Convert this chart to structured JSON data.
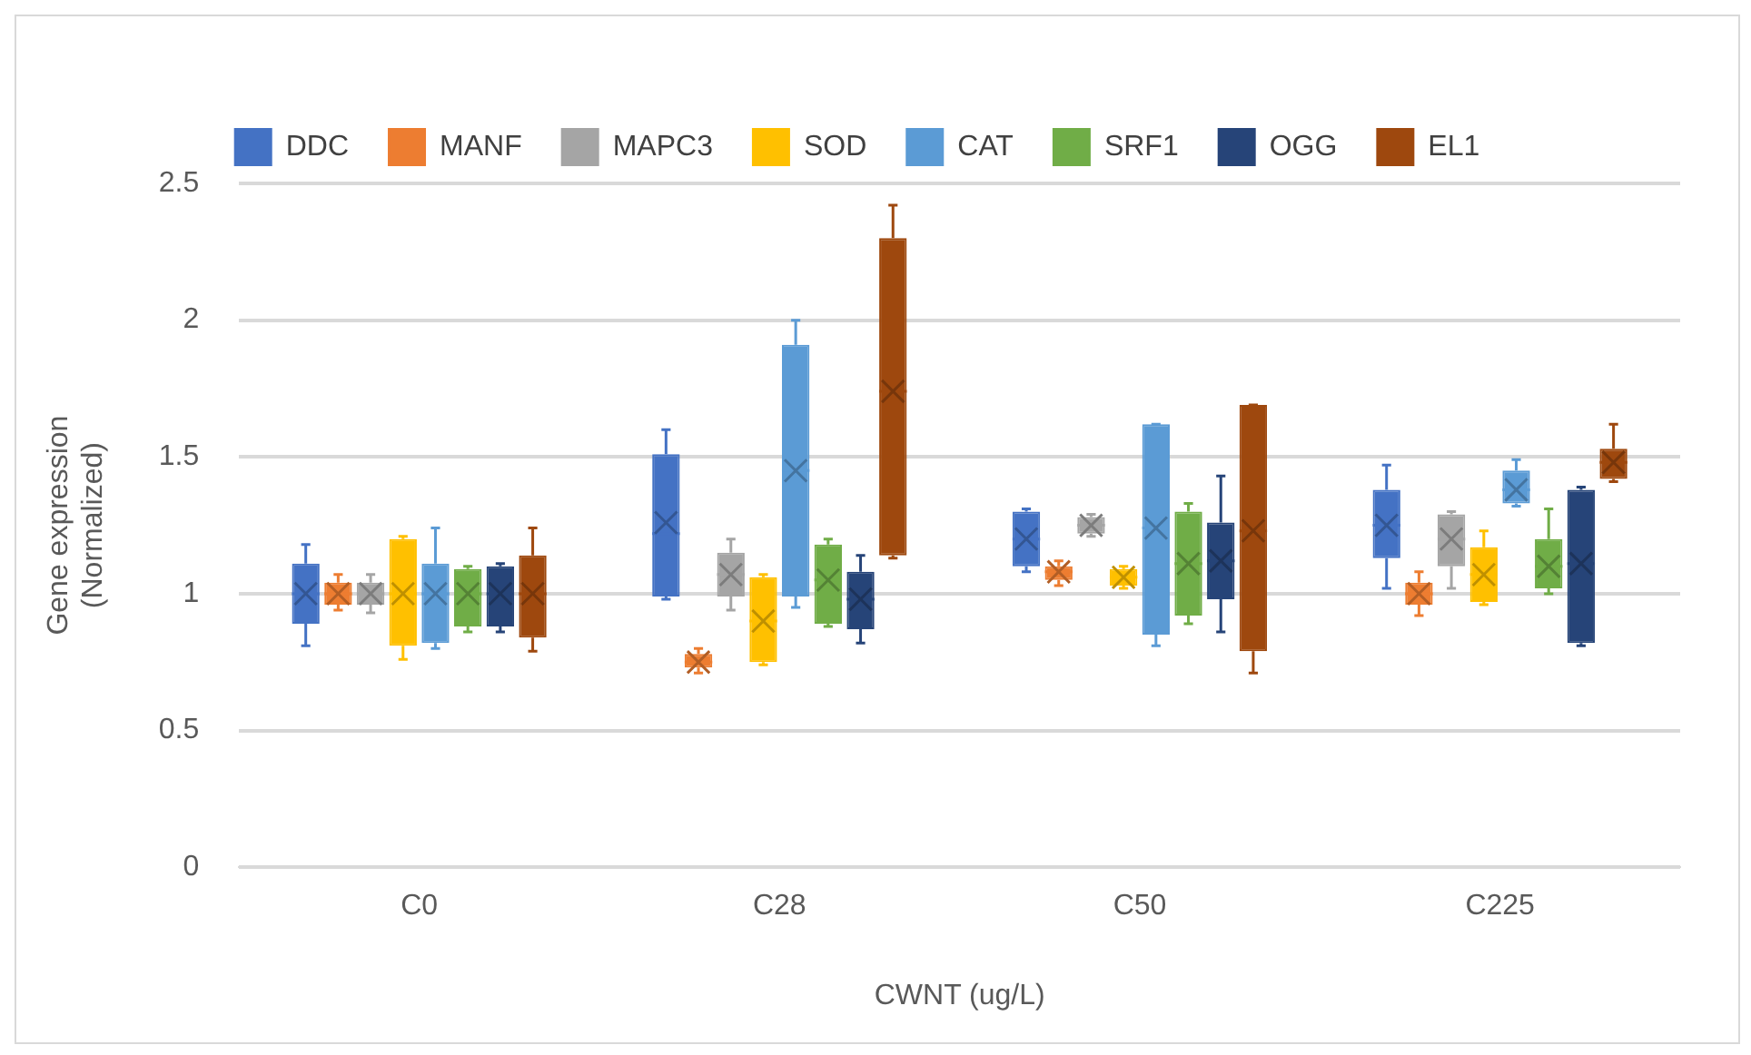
{
  "chart_data": {
    "type": "box",
    "xlabel": "CWNT (ug/L)",
    "ylabel": "Gene expression\n(Normalized)",
    "categories": [
      "C0",
      "C28",
      "C50",
      "C225"
    ],
    "ylim": [
      0,
      2.5
    ],
    "yticks": [
      0,
      0.5,
      1,
      1.5,
      2,
      2.5
    ],
    "grid": "y",
    "legend": "top",
    "marker": "cross",
    "series": [
      {
        "name": "DDC",
        "color": "#4472c4",
        "boxes": [
          {
            "low": 0.81,
            "q1": 0.89,
            "median": 1.0,
            "q3": 1.11,
            "high": 1.18,
            "mean": 1.0
          },
          {
            "low": 0.98,
            "q1": 0.99,
            "median": 1.22,
            "q3": 1.51,
            "high": 1.6,
            "mean": 1.26
          },
          {
            "low": 1.08,
            "q1": 1.1,
            "median": 1.2,
            "q3": 1.3,
            "high": 1.31,
            "mean": 1.2
          },
          {
            "low": 1.02,
            "q1": 1.13,
            "median": 1.25,
            "q3": 1.38,
            "high": 1.47,
            "mean": 1.25
          }
        ]
      },
      {
        "name": "MANF",
        "color": "#ed7d31",
        "boxes": [
          {
            "low": 0.94,
            "q1": 0.96,
            "median": 1.0,
            "q3": 1.04,
            "high": 1.07,
            "mean": 1.0
          },
          {
            "low": 0.71,
            "q1": 0.73,
            "median": 0.75,
            "q3": 0.78,
            "high": 0.8,
            "mean": 0.75
          },
          {
            "low": 1.03,
            "q1": 1.05,
            "median": 1.08,
            "q3": 1.1,
            "high": 1.12,
            "mean": 1.08
          },
          {
            "low": 0.92,
            "q1": 0.96,
            "median": 1.0,
            "q3": 1.04,
            "high": 1.08,
            "mean": 1.0
          }
        ]
      },
      {
        "name": "MAPC3",
        "color": "#a5a5a5",
        "boxes": [
          {
            "low": 0.93,
            "q1": 0.96,
            "median": 1.0,
            "q3": 1.04,
            "high": 1.07,
            "mean": 1.0
          },
          {
            "low": 0.94,
            "q1": 0.99,
            "median": 1.07,
            "q3": 1.15,
            "high": 1.2,
            "mean": 1.07
          },
          {
            "low": 1.21,
            "q1": 1.22,
            "median": 1.25,
            "q3": 1.28,
            "high": 1.29,
            "mean": 1.25
          },
          {
            "low": 1.02,
            "q1": 1.1,
            "median": 1.2,
            "q3": 1.29,
            "high": 1.3,
            "mean": 1.2
          }
        ]
      },
      {
        "name": "SOD",
        "color": "#ffc000",
        "boxes": [
          {
            "low": 0.76,
            "q1": 0.81,
            "median": 1.0,
            "q3": 1.2,
            "high": 1.21,
            "mean": 1.0
          },
          {
            "low": 0.74,
            "q1": 0.75,
            "median": 0.9,
            "q3": 1.06,
            "high": 1.07,
            "mean": 0.9
          },
          {
            "low": 1.02,
            "q1": 1.03,
            "median": 1.06,
            "q3": 1.09,
            "high": 1.1,
            "mean": 1.06
          },
          {
            "low": 0.96,
            "q1": 0.97,
            "median": 1.07,
            "q3": 1.17,
            "high": 1.23,
            "mean": 1.07
          }
        ]
      },
      {
        "name": "CAT",
        "color": "#5b9bd5",
        "boxes": [
          {
            "low": 0.8,
            "q1": 0.82,
            "median": 1.0,
            "q3": 1.11,
            "high": 1.24,
            "mean": 1.0
          },
          {
            "low": 0.95,
            "q1": 0.99,
            "median": 1.45,
            "q3": 1.91,
            "high": 2.0,
            "mean": 1.45
          },
          {
            "low": 0.81,
            "q1": 0.85,
            "median": 1.24,
            "q3": 1.62,
            "high": 1.62,
            "mean": 1.24
          },
          {
            "low": 1.32,
            "q1": 1.33,
            "median": 1.38,
            "q3": 1.45,
            "high": 1.49,
            "mean": 1.38
          }
        ]
      },
      {
        "name": "SRF1",
        "color": "#70ad47",
        "boxes": [
          {
            "low": 0.86,
            "q1": 0.88,
            "median": 1.0,
            "q3": 1.09,
            "high": 1.1,
            "mean": 1.0
          },
          {
            "low": 0.88,
            "q1": 0.89,
            "median": 1.05,
            "q3": 1.18,
            "high": 1.2,
            "mean": 1.05
          },
          {
            "low": 0.89,
            "q1": 0.92,
            "median": 1.11,
            "q3": 1.3,
            "high": 1.33,
            "mean": 1.11
          },
          {
            "low": 1.0,
            "q1": 1.02,
            "median": 1.1,
            "q3": 1.2,
            "high": 1.31,
            "mean": 1.1
          }
        ]
      },
      {
        "name": "OGG",
        "color": "#264478",
        "boxes": [
          {
            "low": 0.86,
            "q1": 0.88,
            "median": 1.0,
            "q3": 1.1,
            "high": 1.11,
            "mean": 1.0
          },
          {
            "low": 0.82,
            "q1": 0.87,
            "median": 0.98,
            "q3": 1.08,
            "high": 1.14,
            "mean": 0.98
          },
          {
            "low": 0.86,
            "q1": 0.98,
            "median": 1.12,
            "q3": 1.26,
            "high": 1.43,
            "mean": 1.12
          },
          {
            "low": 0.81,
            "q1": 0.82,
            "median": 1.11,
            "q3": 1.38,
            "high": 1.39,
            "mean": 1.11
          }
        ]
      },
      {
        "name": "EL1",
        "color": "#9e480e",
        "boxes": [
          {
            "low": 0.79,
            "q1": 0.84,
            "median": 1.0,
            "q3": 1.14,
            "high": 1.24,
            "mean": 1.0
          },
          {
            "low": 1.13,
            "q1": 1.14,
            "median": 1.74,
            "q3": 2.3,
            "high": 2.42,
            "mean": 1.74
          },
          {
            "low": 0.71,
            "q1": 0.79,
            "median": 1.23,
            "q3": 1.69,
            "high": 1.69,
            "mean": 1.23
          },
          {
            "low": 1.41,
            "q1": 1.42,
            "median": 1.48,
            "q3": 1.53,
            "high": 1.62,
            "mean": 1.48
          }
        ]
      }
    ]
  }
}
